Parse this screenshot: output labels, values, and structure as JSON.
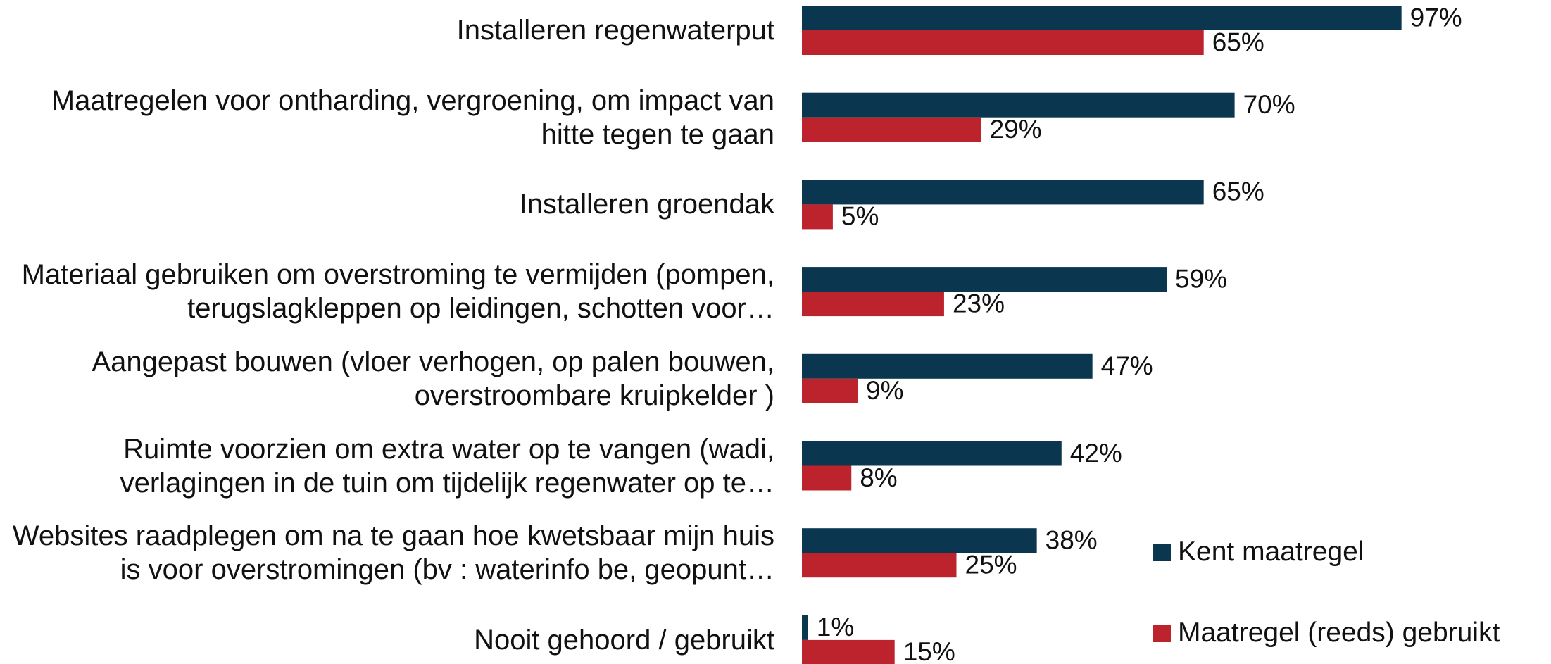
{
  "chart_data": {
    "type": "bar",
    "orientation": "horizontal",
    "categories": [
      "Installeren regenwaterput",
      "Maatregelen voor ontharding, vergroening, om impact van hitte tegen te gaan",
      "Installeren groendak",
      "Materiaal gebruiken om overstroming te vermijden (pompen, terugslagkleppen op leidingen, schotten voor…",
      "Aangepast bouwen (vloer verhogen, op palen bouwen, overstroombare kruipkelder )",
      "Ruimte voorzien om extra water op te vangen (wadi, verlagingen in de tuin om tijdelijk regenwater op te…",
      "Websites raadplegen om na te gaan hoe kwetsbaar mijn huis is voor overstromingen (bv : waterinfo be, geopunt…",
      "Nooit gehoord / gebruikt"
    ],
    "series": [
      {
        "name": "Kent maatregel",
        "color": "#0b3650",
        "values": [
          97,
          70,
          65,
          59,
          47,
          42,
          38,
          1
        ],
        "value_labels": [
          "97%",
          "70%",
          "65%",
          "59%",
          "47%",
          "42%",
          "38%",
          "1%"
        ]
      },
      {
        "name": "Maatregel (reeds) gebruikt",
        "color": "#bd232c",
        "values": [
          65,
          29,
          5,
          23,
          9,
          8,
          25,
          15
        ],
        "value_labels": [
          "65%",
          "29%",
          "5%",
          "23%",
          "9%",
          "8%",
          "25%",
          "15%"
        ]
      }
    ],
    "legend": "right"
  }
}
